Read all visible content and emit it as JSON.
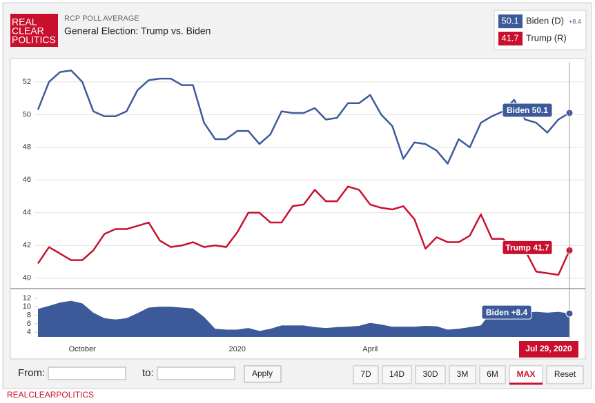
{
  "logo": [
    "REAL",
    "CLEAR",
    "POLITICS"
  ],
  "header": {
    "kicker": "RCP POLL AVERAGE",
    "title": "General Election: Trump vs. Biden"
  },
  "legend": [
    {
      "value": 50.1,
      "name": "Biden (D)",
      "change": "+8.4"
    },
    {
      "value": 41.7,
      "name": "Trump (R)"
    }
  ],
  "chart_data": [
    {
      "type": "line",
      "ylim": [
        39.4,
        53.3
      ],
      "yticks": [
        40,
        42,
        44,
        46,
        48,
        50,
        52
      ],
      "grid": true,
      "series": [
        {
          "name": "Biden",
          "color": "#3c5a9a",
          "end_label": "Biden 50.1",
          "values": [
            50.3,
            52.0,
            52.6,
            52.7,
            52.0,
            50.2,
            49.9,
            49.9,
            50.2,
            51.5,
            52.1,
            52.2,
            52.2,
            51.8,
            51.8,
            49.5,
            48.5,
            48.5,
            49.0,
            49.0,
            48.2,
            48.8,
            50.2,
            50.1,
            50.1,
            50.4,
            49.7,
            49.8,
            50.7,
            50.7,
            51.2,
            50.0,
            49.3,
            47.3,
            48.3,
            48.2,
            47.8,
            47.0,
            48.5,
            48.0,
            49.5,
            49.9,
            50.2,
            50.9,
            49.7,
            49.5,
            48.9,
            49.7,
            50.1
          ]
        },
        {
          "name": "Trump",
          "color": "#c8102e",
          "end_label": "Trump 41.7",
          "values": [
            40.9,
            41.9,
            41.5,
            41.1,
            41.1,
            41.7,
            42.7,
            43.0,
            43.0,
            43.2,
            43.4,
            42.3,
            41.9,
            42.0,
            42.2,
            41.9,
            42.0,
            41.9,
            42.8,
            44.0,
            44.0,
            43.4,
            43.4,
            44.4,
            44.5,
            45.4,
            44.7,
            44.7,
            45.6,
            45.4,
            44.5,
            44.3,
            44.2,
            44.4,
            43.6,
            41.8,
            42.5,
            42.2,
            42.2,
            42.6,
            43.9,
            42.4,
            42.4,
            41.8,
            41.7,
            40.4,
            40.3,
            40.2,
            41.7
          ]
        }
      ]
    },
    {
      "type": "area",
      "name": "Biden",
      "color": "#3c5a9a",
      "end_label": "Biden +8.4",
      "cursor_label": "Jul 29, 2020",
      "ylim": [
        2.9,
        14.1
      ],
      "yticks": [
        4,
        6,
        8,
        10,
        12
      ],
      "categories": [
        null,
        null,
        null,
        null,
        "October",
        null,
        null,
        null,
        null,
        null,
        null,
        null,
        null,
        null,
        null,
        null,
        null,
        null,
        "2020",
        null,
        null,
        null,
        null,
        null,
        null,
        null,
        null,
        null,
        null,
        null,
        "April",
        null,
        null,
        null,
        null,
        null,
        null,
        null,
        null,
        null,
        null,
        null,
        null,
        null,
        null,
        null,
        null,
        null,
        null
      ],
      "values": [
        9.5,
        10.2,
        11.0,
        11.4,
        10.8,
        8.6,
        7.3,
        7.0,
        7.3,
        8.5,
        9.8,
        10.0,
        10.0,
        9.8,
        9.6,
        7.6,
        4.8,
        4.6,
        4.6,
        5.0,
        4.3,
        4.8,
        5.6,
        5.6,
        5.6,
        5.2,
        5.0,
        5.2,
        5.3,
        5.5,
        6.2,
        5.8,
        5.3,
        5.3,
        5.3,
        5.5,
        5.4,
        4.6,
        4.8,
        5.2,
        5.6,
        9.0,
        9.0,
        9.2,
        8.6,
        8.8,
        8.6,
        8.8,
        8.4
      ]
    }
  ],
  "controls": {
    "from": "From:",
    "to": "to:",
    "apply": "Apply",
    "buttons": [
      "7D",
      "14D",
      "30D",
      "3M",
      "6M",
      "MAX",
      "Reset"
    ]
  },
  "footer": "REALCLEARPOLITICS"
}
